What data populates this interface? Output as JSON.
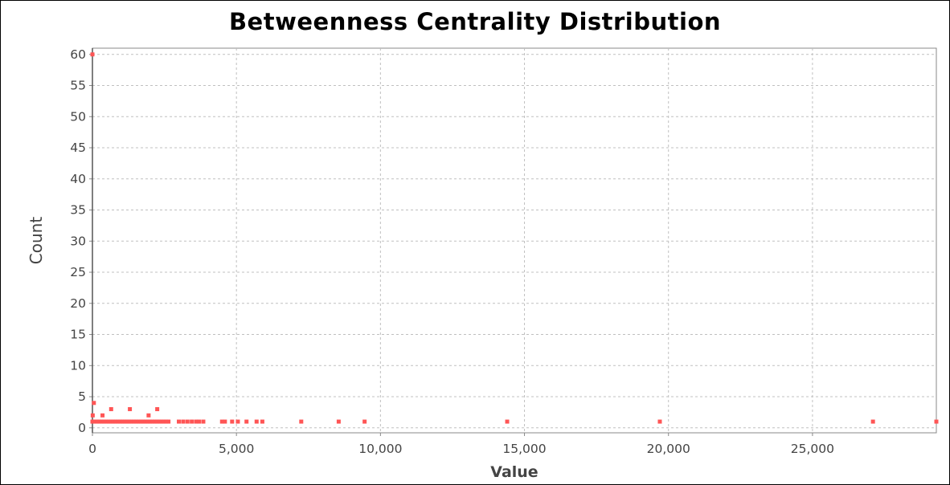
{
  "chart_data": {
    "type": "scatter",
    "title": "Betweenness Centrality Distribution",
    "xlabel": "Value",
    "ylabel": "Count",
    "xlim": [
      0,
      29300
    ],
    "ylim": [
      -0.8,
      61
    ],
    "xticks": [
      0,
      5000,
      10000,
      15000,
      20000,
      25000
    ],
    "xtick_labels": [
      "0",
      "5,000",
      "10,000",
      "15,000",
      "20,000",
      "25,000"
    ],
    "yticks": [
      0,
      5,
      10,
      15,
      20,
      25,
      30,
      35,
      40,
      45,
      50,
      55,
      60
    ],
    "grid": true,
    "legend": "none",
    "point_color": "#ff5555",
    "series": [
      {
        "points": [
          [
            0,
            60
          ],
          [
            50,
            4
          ],
          [
            10,
            2
          ],
          [
            350,
            2
          ],
          [
            650,
            3
          ],
          [
            1300,
            3
          ],
          [
            1950,
            2
          ],
          [
            2250,
            3
          ],
          [
            0,
            1
          ],
          [
            80,
            1
          ],
          [
            160,
            1
          ],
          [
            240,
            1
          ],
          [
            320,
            1
          ],
          [
            400,
            1
          ],
          [
            480,
            1
          ],
          [
            560,
            1
          ],
          [
            640,
            1
          ],
          [
            720,
            1
          ],
          [
            800,
            1
          ],
          [
            880,
            1
          ],
          [
            960,
            1
          ],
          [
            1040,
            1
          ],
          [
            1120,
            1
          ],
          [
            1200,
            1
          ],
          [
            1280,
            1
          ],
          [
            1360,
            1
          ],
          [
            1440,
            1
          ],
          [
            1520,
            1
          ],
          [
            1600,
            1
          ],
          [
            1680,
            1
          ],
          [
            1760,
            1
          ],
          [
            1840,
            1
          ],
          [
            1920,
            1
          ],
          [
            2000,
            1
          ],
          [
            2080,
            1
          ],
          [
            2160,
            1
          ],
          [
            2240,
            1
          ],
          [
            2320,
            1
          ],
          [
            2400,
            1
          ],
          [
            2480,
            1
          ],
          [
            2560,
            1
          ],
          [
            2640,
            1
          ],
          [
            3000,
            1
          ],
          [
            3150,
            1
          ],
          [
            3300,
            1
          ],
          [
            3450,
            1
          ],
          [
            3600,
            1
          ],
          [
            3700,
            1
          ],
          [
            3850,
            1
          ],
          [
            4500,
            1
          ],
          [
            4600,
            1
          ],
          [
            4850,
            1
          ],
          [
            5050,
            1
          ],
          [
            5350,
            1
          ],
          [
            5700,
            1
          ],
          [
            5900,
            1
          ],
          [
            7250,
            1
          ],
          [
            8550,
            1
          ],
          [
            9450,
            1
          ],
          [
            14400,
            1
          ],
          [
            19700,
            1
          ],
          [
            27100,
            1
          ],
          [
            29300,
            1
          ]
        ]
      }
    ]
  }
}
